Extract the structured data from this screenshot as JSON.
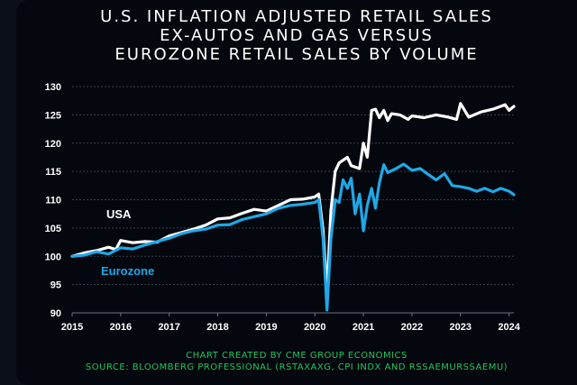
{
  "chart_data": {
    "type": "line",
    "title": [
      "U.S. INFLATION ADJUSTED RETAIL SALES",
      "EX-AUTOS AND GAS VERSUS",
      "EUROZONE RETAIL SALES BY VOLUME"
    ],
    "xlabel": "",
    "ylabel": "",
    "xlim": [
      2015,
      2024.1
    ],
    "ylim": [
      90,
      130
    ],
    "x_ticks": [
      "2015",
      "2016",
      "2017",
      "2018",
      "2019",
      "2020",
      "2021",
      "2022",
      "2023",
      "2024"
    ],
    "y_ticks": [
      "90",
      "95",
      "100",
      "105",
      "110",
      "115",
      "120",
      "125",
      "130"
    ],
    "grid": true,
    "series": [
      {
        "name": "USA",
        "color": "#ffffff",
        "points": [
          [
            2015.0,
            100.0
          ],
          [
            2015.25,
            100.6
          ],
          [
            2015.5,
            101.0
          ],
          [
            2015.75,
            101.6
          ],
          [
            2015.9,
            101.2
          ],
          [
            2016.0,
            102.8
          ],
          [
            2016.25,
            102.4
          ],
          [
            2016.5,
            102.6
          ],
          [
            2016.75,
            102.5
          ],
          [
            2017.0,
            103.6
          ],
          [
            2017.25,
            104.2
          ],
          [
            2017.5,
            104.8
          ],
          [
            2017.75,
            105.5
          ],
          [
            2018.0,
            106.6
          ],
          [
            2018.25,
            106.8
          ],
          [
            2018.5,
            107.6
          ],
          [
            2018.75,
            108.3
          ],
          [
            2019.0,
            108.0
          ],
          [
            2019.25,
            109.0
          ],
          [
            2019.5,
            110.0
          ],
          [
            2019.75,
            110.1
          ],
          [
            2020.0,
            110.5
          ],
          [
            2020.08,
            111.0
          ],
          [
            2020.17,
            104.5
          ],
          [
            2020.25,
            93.5
          ],
          [
            2020.33,
            108.0
          ],
          [
            2020.42,
            115.0
          ],
          [
            2020.5,
            116.5
          ],
          [
            2020.67,
            117.5
          ],
          [
            2020.75,
            116.0
          ],
          [
            2020.92,
            115.5
          ],
          [
            2021.0,
            120.0
          ],
          [
            2021.08,
            117.5
          ],
          [
            2021.17,
            125.8
          ],
          [
            2021.25,
            126.0
          ],
          [
            2021.33,
            124.5
          ],
          [
            2021.42,
            125.8
          ],
          [
            2021.5,
            124.0
          ],
          [
            2021.58,
            125.2
          ],
          [
            2021.75,
            125.0
          ],
          [
            2021.92,
            124.2
          ],
          [
            2022.0,
            124.8
          ],
          [
            2022.25,
            124.5
          ],
          [
            2022.5,
            125.0
          ],
          [
            2022.75,
            124.6
          ],
          [
            2022.92,
            124.2
          ],
          [
            2023.0,
            127.0
          ],
          [
            2023.17,
            124.6
          ],
          [
            2023.42,
            125.5
          ],
          [
            2023.67,
            126.0
          ],
          [
            2023.92,
            126.8
          ],
          [
            2024.0,
            125.8
          ],
          [
            2024.1,
            126.5
          ]
        ]
      },
      {
        "name": "Eurozone",
        "color": "#1ea8e8",
        "points": [
          [
            2015.0,
            100.0
          ],
          [
            2015.25,
            100.2
          ],
          [
            2015.5,
            100.8
          ],
          [
            2015.75,
            100.4
          ],
          [
            2016.0,
            101.5
          ],
          [
            2016.25,
            101.3
          ],
          [
            2016.5,
            102.0
          ],
          [
            2016.75,
            102.6
          ],
          [
            2017.0,
            103.2
          ],
          [
            2017.25,
            104.0
          ],
          [
            2017.5,
            104.5
          ],
          [
            2017.75,
            104.8
          ],
          [
            2018.0,
            105.5
          ],
          [
            2018.25,
            105.6
          ],
          [
            2018.5,
            106.5
          ],
          [
            2018.75,
            107.0
          ],
          [
            2019.0,
            107.5
          ],
          [
            2019.25,
            108.5
          ],
          [
            2019.5,
            109.0
          ],
          [
            2019.75,
            109.2
          ],
          [
            2020.0,
            109.5
          ],
          [
            2020.08,
            110.0
          ],
          [
            2020.17,
            103.0
          ],
          [
            2020.25,
            90.5
          ],
          [
            2020.33,
            103.0
          ],
          [
            2020.42,
            110.0
          ],
          [
            2020.5,
            109.5
          ],
          [
            2020.58,
            113.5
          ],
          [
            2020.67,
            112.0
          ],
          [
            2020.75,
            113.8
          ],
          [
            2020.83,
            107.5
          ],
          [
            2020.92,
            111.0
          ],
          [
            2021.0,
            104.5
          ],
          [
            2021.08,
            109.0
          ],
          [
            2021.17,
            112.0
          ],
          [
            2021.25,
            108.5
          ],
          [
            2021.33,
            113.0
          ],
          [
            2021.42,
            116.2
          ],
          [
            2021.5,
            114.8
          ],
          [
            2021.67,
            115.5
          ],
          [
            2021.83,
            116.3
          ],
          [
            2022.0,
            115.2
          ],
          [
            2022.17,
            115.5
          ],
          [
            2022.33,
            114.5
          ],
          [
            2022.5,
            113.5
          ],
          [
            2022.67,
            114.6
          ],
          [
            2022.83,
            112.5
          ],
          [
            2023.0,
            112.3
          ],
          [
            2023.17,
            112.0
          ],
          [
            2023.33,
            111.5
          ],
          [
            2023.5,
            112.0
          ],
          [
            2023.67,
            111.4
          ],
          [
            2023.83,
            112.0
          ],
          [
            2024.0,
            111.5
          ],
          [
            2024.1,
            110.9
          ]
        ]
      }
    ],
    "annotations": [
      {
        "text": "USA",
        "series": "USA"
      },
      {
        "text": "Eurozone",
        "series": "Eurozone"
      }
    ]
  },
  "footer": {
    "line1": "CHART CREATED BY CME GROUP ECONOMICS",
    "line2": "SOURCE: BLOOMBERG PROFESSIONAL (RSTAXAXG, CPI INDX AND RSSAEMURSSAEMU)"
  },
  "colors": {
    "background": "#04070d",
    "grid": "#3a3f4a",
    "axis": "#6b7280",
    "footer": "#22c55e"
  }
}
